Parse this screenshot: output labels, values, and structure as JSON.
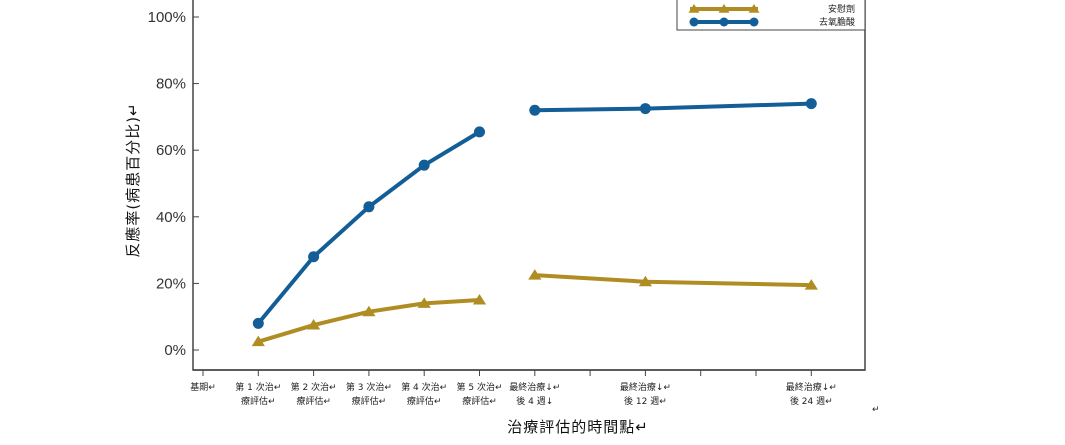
{
  "chart_data": {
    "type": "line",
    "categories": [
      "基期↵",
      "第 1 次治↵療評估↵",
      "第 2 次治↵療評估↵",
      "第 3 次治↵療評估↵",
      "第 4 次治↵療評估↵",
      "第 5 次治↵療評估↵",
      "最終治療↓↵後 4 週↓",
      "",
      "最終治療↓↵後 12 週↵",
      "",
      "",
      "最終治療↓↵後 24 週↵"
    ],
    "series": [
      {
        "name": "安慰劑",
        "color": "#b08d22",
        "marker": "triangle",
        "values": [
          null,
          2.5,
          7.5,
          11.5,
          14,
          15,
          22.5,
          null,
          20.5,
          null,
          null,
          19.5
        ]
      },
      {
        "name": "去氧膽酸",
        "color": "#135e96",
        "marker": "circle",
        "values": [
          null,
          8,
          28,
          43,
          55.5,
          65.5,
          72,
          null,
          72.5,
          null,
          null,
          74
        ]
      }
    ],
    "segments_break_after_index": 5,
    "yticks": [
      "0%",
      "20%",
      "40%",
      "60%",
      "80%",
      "100%"
    ],
    "ylim": [
      0,
      100
    ],
    "ylabel": "反應率(病患百分比)↵",
    "xlabel": "治療評估的時間點↵",
    "legend_position": "top-right",
    "stray_marks": [
      "↵"
    ],
    "grid": false
  }
}
